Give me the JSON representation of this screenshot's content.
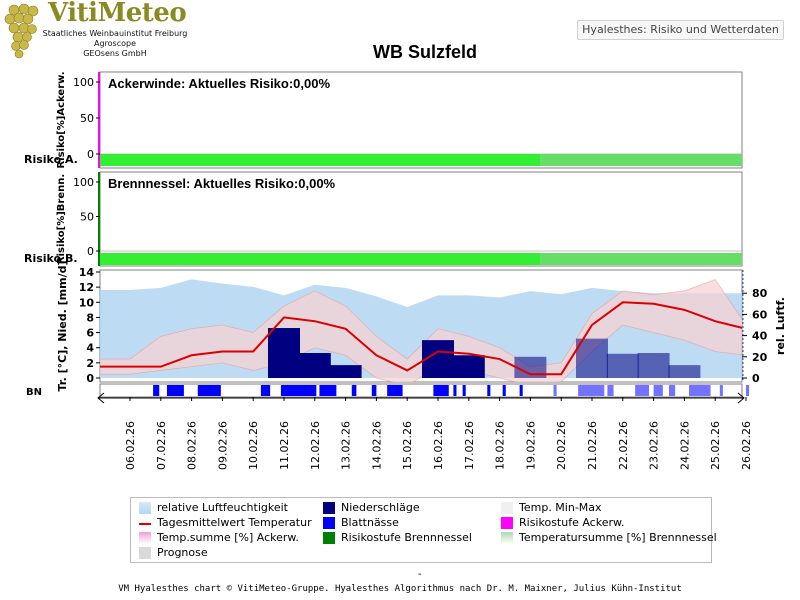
{
  "header": {
    "logo_text": "VitiMeteo",
    "org_lines": [
      "Staatliches Weinbauinstitut Freiburg",
      "Agroscope",
      "GEOsens GmbH"
    ],
    "app_badge": "Hyalesthes: Risiko und Wetterdaten"
  },
  "title": "WB Sulzfeld",
  "footer": {
    "dash": "-",
    "text": "VM Hyalesthes chart © VitiMeteo-Gruppe. Hyalesthes Algorithmus nach Dr. M. Maixner, Julius Kühn-Institut"
  },
  "colors": {
    "panel_border": "#808080",
    "prognose": "#d9d9d9",
    "risk_green": "#33ee33",
    "risk_green_prognose": "#66dd66",
    "humidity": "#b3d5f2",
    "precip": "#000080",
    "leaf_wet": "#0000ff",
    "temp_line": "#dd0000",
    "temp_band": "#f6d3d3",
    "ackerwinde": "#ff00ff",
    "brennnessel": "#008000"
  },
  "chart_data": {
    "type": "combined",
    "x_dates": [
      "06.02.26",
      "07.02.26",
      "08.02.26",
      "09.02.26",
      "10.02.26",
      "11.02.26",
      "12.02.26",
      "13.02.26",
      "14.02.26",
      "15.02.26",
      "16.02.26",
      "17.02.26",
      "18.02.26",
      "19.02.26",
      "20.02.26",
      "21.02.26",
      "22.02.26",
      "23.02.26",
      "24.02.26",
      "25.02.26",
      "26.02.26"
    ],
    "prognose_from": "19.02.26",
    "panels": [
      {
        "id": "ackerwinde",
        "annotation": "Ackerwinde: Aktuelles Risiko:0,00%",
        "ylabel": "Risiko[%]Ackerw.",
        "yticks": [
          100,
          50,
          0
        ],
        "ylim": [
          0,
          100
        ],
        "risk_label": "Risiko A."
      },
      {
        "id": "brennnessel",
        "annotation": "Brennnessel: Aktuelles Risiko:0,00%",
        "ylabel": "Risiko[%]Brenn.",
        "yticks": [
          100,
          50,
          0
        ],
        "ylim": [
          0,
          100
        ],
        "risk_label": "Risiko B."
      },
      {
        "id": "weather",
        "ylabel_left": "Tr. [°C], Nied. [mm/d]",
        "ylabel_right": "rel. Luftf.",
        "yticks_left": [
          14,
          12,
          10,
          8,
          6,
          4,
          2,
          0
        ],
        "ylim_left": [
          0,
          14
        ],
        "yticks_right": [
          80,
          60,
          40,
          20,
          0
        ],
        "ylim_right": [
          0,
          100
        ],
        "bn_label": "BN",
        "humidity": {
          "x": [
            0,
            1,
            2,
            3,
            4,
            5,
            6,
            7,
            8,
            9,
            10,
            11,
            12,
            13,
            14,
            15,
            16,
            17,
            18,
            19,
            20
          ],
          "values": [
            83,
            85,
            93,
            89,
            86,
            78,
            88,
            85,
            77,
            67,
            78,
            78,
            76,
            82,
            79,
            85,
            82,
            80,
            80,
            80,
            80
          ]
        },
        "temp_max": {
          "x": [
            0,
            1,
            2,
            3,
            4,
            5,
            6,
            7,
            8,
            9,
            10,
            11,
            12,
            13,
            14,
            15,
            16,
            17,
            18,
            19,
            20
          ],
          "values": [
            2.5,
            5.5,
            6.5,
            7,
            6,
            9.5,
            11.5,
            9.5,
            5.5,
            2.5,
            6.5,
            5.5,
            4,
            1.5,
            2,
            8.5,
            11.5,
            11,
            11.5,
            13,
            7
          ]
        },
        "temp_min": {
          "x": [
            0,
            1,
            2,
            3,
            4,
            5,
            6,
            7,
            8,
            9,
            10,
            11,
            12,
            13,
            14,
            15,
            16,
            17,
            18,
            19,
            20
          ],
          "values": [
            0.5,
            1,
            1.5,
            2,
            1,
            2,
            4,
            3,
            0,
            -1,
            1.5,
            1,
            0,
            -1,
            -0.5,
            3.5,
            7,
            6,
            5,
            3.5,
            3
          ]
        },
        "temp_mean": {
          "x": [
            0,
            1,
            2,
            3,
            4,
            5,
            6,
            7,
            8,
            9,
            10,
            11,
            12,
            13,
            14,
            15,
            16,
            17,
            18,
            19,
            20
          ],
          "values": [
            1.5,
            1.5,
            3,
            3.5,
            3.5,
            8,
            7.5,
            6.5,
            3,
            1,
            3.5,
            3.2,
            2.5,
            0.5,
            0.5,
            7,
            10,
            9.8,
            9,
            7.5,
            6.5
          ]
        },
        "precipitation": {
          "x": [
            5,
            6,
            7,
            10,
            11,
            13,
            15,
            16,
            17,
            18
          ],
          "values": [
            6.6,
            3.3,
            1.7,
            5,
            3,
            2.8,
            5.2,
            3.2,
            3.3,
            1.7
          ]
        },
        "leaf_wetness_segments": [
          [
            0.75,
            0.95
          ],
          [
            1.2,
            1.75
          ],
          [
            2.2,
            2.95
          ],
          [
            4.25,
            4.55
          ],
          [
            4.9,
            6.05
          ],
          [
            6.15,
            6.7
          ],
          [
            7.2,
            7.35
          ],
          [
            7.85,
            8.0
          ],
          [
            8.35,
            8.85
          ],
          [
            9.85,
            10.35
          ],
          [
            10.5,
            10.6
          ],
          [
            10.8,
            10.9
          ],
          [
            11.6,
            11.7
          ],
          [
            12.1,
            12.2
          ],
          [
            12.65,
            12.75
          ],
          [
            13.75,
            13.85
          ],
          [
            14.55,
            15.4
          ],
          [
            15.5,
            15.7
          ],
          [
            16.4,
            16.85
          ],
          [
            17.0,
            17.3
          ],
          [
            17.5,
            17.7
          ],
          [
            18.15,
            18.85
          ],
          [
            19.15,
            19.25
          ],
          [
            20.0,
            20.1
          ]
        ]
      }
    ],
    "legend": [
      {
        "label": "relative Luftfeuchtigkeit",
        "color": "#b3d5f2",
        "kind": "area"
      },
      {
        "label": "Niederschläge",
        "color": "#000080",
        "kind": "box"
      },
      {
        "label": "Temp. Min-Max",
        "color": "#f0f0f0",
        "kind": "box"
      },
      {
        "label": "Tagesmittelwert Temperatur",
        "color": "#dd0000",
        "kind": "line"
      },
      {
        "label": "Blattnässe",
        "color": "#0000ff",
        "kind": "box"
      },
      {
        "label": "Risikostufe Ackerw.",
        "color": "#ff00ff",
        "kind": "box"
      },
      {
        "label": "Temp.summe [%] Ackerw.",
        "color": "#f0a0d0",
        "kind": "gradient"
      },
      {
        "label": "Risikostufe Brennnessel",
        "color": "#008000",
        "kind": "box"
      },
      {
        "label": "Temperatursumme [%] Brennnessel",
        "color": "#b0d8b0",
        "kind": "gradient"
      },
      {
        "label": "Prognose",
        "color": "#d9d9d9",
        "kind": "box"
      }
    ]
  }
}
